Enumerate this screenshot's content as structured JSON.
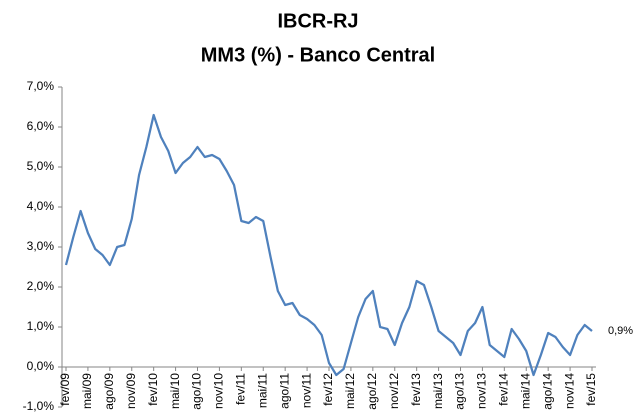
{
  "chart_data": {
    "type": "line",
    "title": "IBCR-RJ",
    "subtitle": "MM3 (%) - Banco Central",
    "categories": [
      "fev/09",
      null,
      null,
      "mai/09",
      null,
      null,
      "ago/09",
      null,
      null,
      "nov/09",
      null,
      null,
      "fev/10",
      null,
      null,
      "mai/10",
      null,
      null,
      "ago/10",
      null,
      null,
      "nov/10",
      null,
      null,
      "fev/11",
      null,
      null,
      "mai/11",
      null,
      null,
      "ago/11",
      null,
      null,
      "nov/11",
      null,
      null,
      "fev/12",
      null,
      null,
      "mai/12",
      null,
      null,
      "ago/12",
      null,
      null,
      "nov/12",
      null,
      null,
      "fev/13",
      null,
      null,
      "mai/13",
      null,
      null,
      "ago/13",
      null,
      null,
      "nov/13",
      null,
      null,
      "fev/14",
      null,
      null,
      "mai/14",
      null,
      null,
      "ago/14",
      null,
      null,
      "nov/14",
      null,
      null,
      "fev/15"
    ],
    "series": [
      {
        "color": "#4f81bd",
        "values": [
          2.55,
          3.25,
          3.9,
          3.35,
          2.95,
          2.8,
          2.55,
          3.0,
          3.05,
          3.7,
          4.8,
          5.5,
          6.3,
          5.75,
          5.4,
          4.85,
          5.1,
          5.25,
          5.5,
          5.25,
          5.3,
          5.2,
          4.9,
          4.55,
          3.65,
          3.6,
          3.75,
          3.65,
          2.75,
          1.9,
          1.55,
          1.6,
          1.3,
          1.2,
          1.05,
          0.8,
          0.1,
          -0.2,
          -0.05,
          0.6,
          1.25,
          1.7,
          1.9,
          1.0,
          0.95,
          0.55,
          1.1,
          1.5,
          2.15,
          2.05,
          1.5,
          0.9,
          0.75,
          0.6,
          0.3,
          0.9,
          1.1,
          1.5,
          0.55,
          0.4,
          0.25,
          0.95,
          0.7,
          0.4,
          -0.2,
          0.3,
          0.85,
          0.75,
          0.5,
          0.3,
          0.8,
          1.05,
          0.9
        ],
        "value_labels": [
          null,
          null,
          null,
          null,
          null,
          null,
          null,
          null,
          null,
          null,
          null,
          null,
          null,
          null,
          null,
          null,
          null,
          null,
          null,
          null,
          null,
          null,
          null,
          null,
          null,
          null,
          null,
          null,
          null,
          null,
          null,
          null,
          null,
          null,
          null,
          null,
          null,
          null,
          null,
          null,
          null,
          null,
          null,
          null,
          null,
          null,
          null,
          null,
          null,
          null,
          null,
          null,
          null,
          null,
          null,
          null,
          null,
          null,
          null,
          null,
          null,
          null,
          null,
          null,
          null,
          null,
          null,
          null,
          null,
          null,
          null,
          null,
          "0,9%"
        ]
      }
    ],
    "ylim": [
      -1,
      7
    ],
    "yticks": [
      {
        "value": -1,
        "label": "-1,0%"
      },
      {
        "value": 0,
        "label": "0,0%"
      },
      {
        "value": 1,
        "label": "1,0%"
      },
      {
        "value": 2,
        "label": "2,0%"
      },
      {
        "value": 3,
        "label": "3,0%"
      },
      {
        "value": 4,
        "label": "4,0%"
      },
      {
        "value": 5,
        "label": "5,0%"
      },
      {
        "value": 6,
        "label": "6,0%"
      },
      {
        "value": 7,
        "label": "7,0%"
      }
    ],
    "grid": false
  }
}
